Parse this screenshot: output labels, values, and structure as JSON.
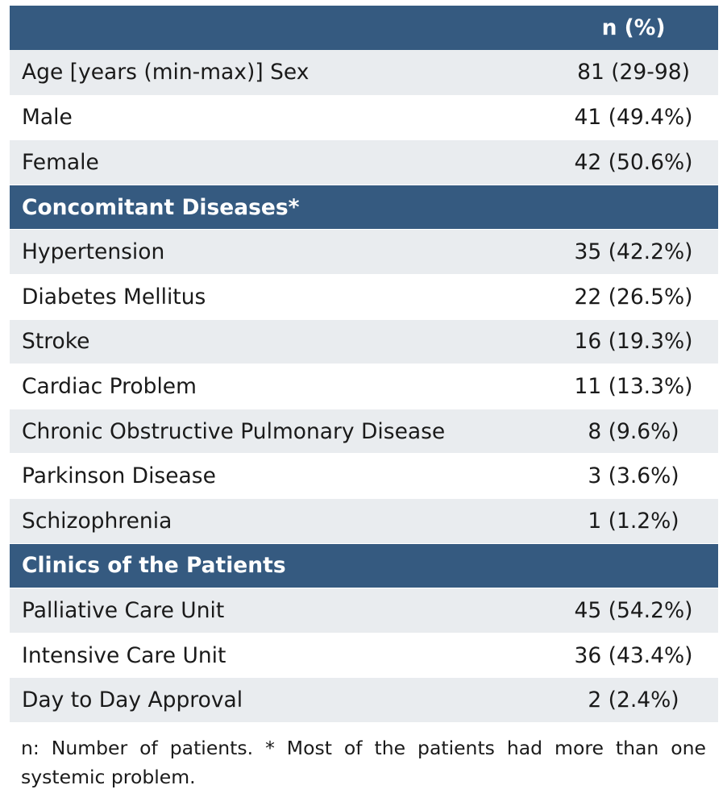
{
  "header": {
    "column_label": "n (%)"
  },
  "rows": [
    {
      "kind": "shade",
      "label": "Age [years (min-max)] Sex",
      "value": "81 (29-98)"
    },
    {
      "kind": "white",
      "label": "Male",
      "value": "41 (49.4%)"
    },
    {
      "kind": "shade",
      "label": "Female",
      "value": "42 (50.6%)"
    },
    {
      "kind": "section",
      "label": "Concomitant Diseases*",
      "value": ""
    },
    {
      "kind": "shade",
      "label": "Hypertension",
      "value": "35 (42.2%)"
    },
    {
      "kind": "white",
      "label": "Diabetes Mellitus",
      "value": "22 (26.5%)"
    },
    {
      "kind": "shade",
      "label": "Stroke",
      "value": "16 (19.3%)"
    },
    {
      "kind": "white",
      "label": "Cardiac Problem",
      "value": "11 (13.3%)"
    },
    {
      "kind": "shade",
      "label": "Chronic Obstructive Pulmonary Disease",
      "value": "8 (9.6%)"
    },
    {
      "kind": "white",
      "label": "Parkinson Disease",
      "value": "3 (3.6%)"
    },
    {
      "kind": "shade",
      "label": "Schizophrenia",
      "value": "1 (1.2%)"
    },
    {
      "kind": "section",
      "label": "Clinics of the Patients",
      "value": ""
    },
    {
      "kind": "shade",
      "label": "Palliative Care Unit",
      "value": "45 (54.2%)"
    },
    {
      "kind": "white",
      "label": "Intensive Care Unit",
      "value": "36 (43.4%)"
    },
    {
      "kind": "shade",
      "label": "Day to Day Approval",
      "value": "2 (2.4%)"
    }
  ],
  "footnote": "n: Number of patients. * Most of the patients had more than one systemic problem."
}
